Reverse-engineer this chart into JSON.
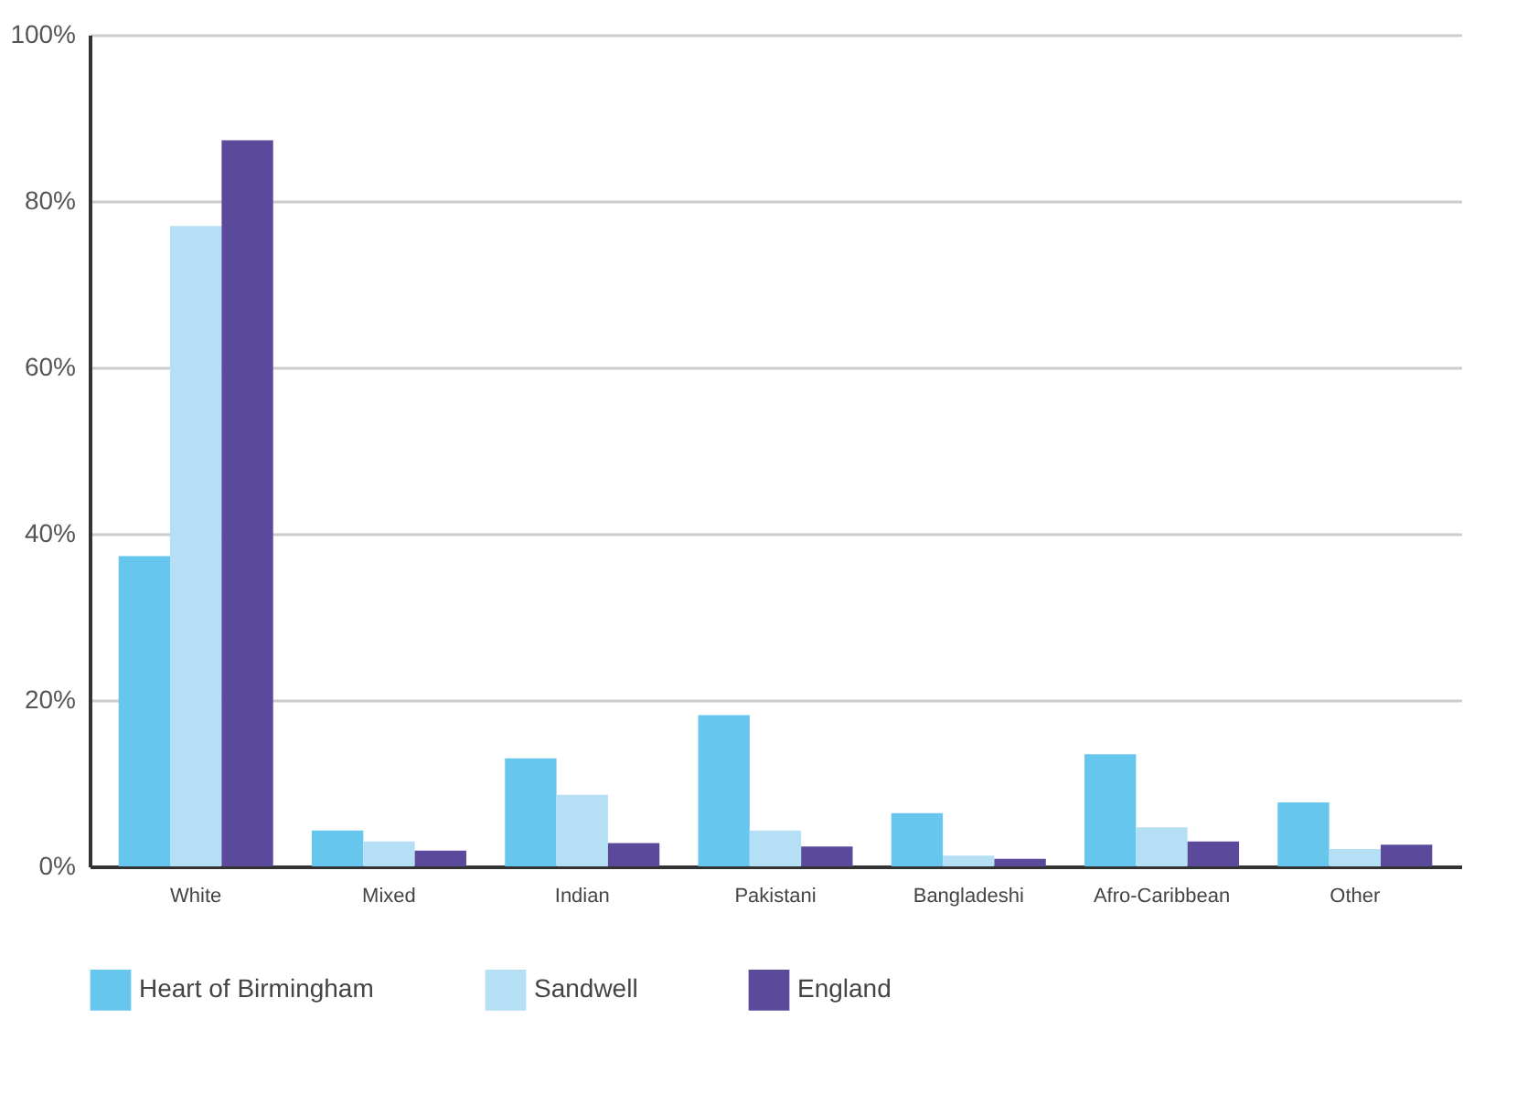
{
  "chart_data": {
    "type": "bar",
    "categories": [
      "White",
      "Mixed",
      "Indian",
      "Pakistani",
      "Bangladeshi",
      "Afro-Caribbean",
      "Other"
    ],
    "series": [
      {
        "name": "Heart of Birmingham",
        "color": "#66c6ee",
        "values": [
          37.3,
          4.3,
          13,
          18.2,
          6.4,
          13.5,
          7.7
        ]
      },
      {
        "name": "Sandwell",
        "color": "#b5dff5",
        "values": [
          77,
          3,
          8.6,
          4.3,
          1.3,
          4.7,
          2.1
        ]
      },
      {
        "name": "England",
        "color": "#5b4a9c",
        "values": [
          87.3,
          1.9,
          2.8,
          2.4,
          0.9,
          3,
          2.6
        ]
      }
    ],
    "ylim": [
      0,
      100
    ],
    "yticks": [
      {
        "value": 0,
        "label": "0%"
      },
      {
        "value": 20,
        "label": "20%"
      },
      {
        "value": 40,
        "label": "40%"
      },
      {
        "value": 60,
        "label": "60%"
      },
      {
        "value": 80,
        "label": "80%"
      },
      {
        "value": 100,
        "label": "100%"
      }
    ],
    "grid": "y",
    "legend": "bottom"
  }
}
